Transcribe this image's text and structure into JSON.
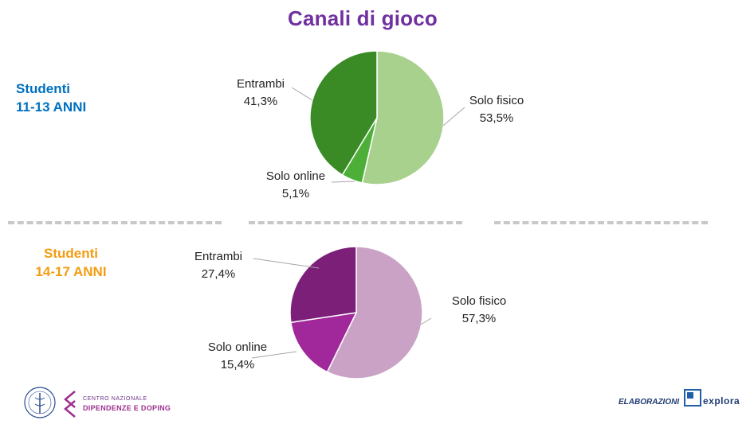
{
  "title": "Canali di gioco",
  "groups": [
    {
      "label_line1": "Studenti",
      "label_line2": "11-13 ANNI",
      "color": "#0070c0"
    },
    {
      "label_line1": "Studenti",
      "label_line2": "14-17 ANNI",
      "color": "#f39c12"
    }
  ],
  "chart_data": [
    {
      "type": "pie",
      "title": "",
      "categories": [
        "Solo fisico",
        "Solo online",
        "Entrambi"
      ],
      "values": [
        53.5,
        5.1,
        41.3
      ],
      "value_labels": [
        "53,5%",
        "5,1%",
        "41,3%"
      ],
      "colors": [
        "#a9d18e",
        "#4daf38",
        "#3a8a26"
      ]
    },
    {
      "type": "pie",
      "title": "",
      "categories": [
        "Solo fisico",
        "Solo online",
        "Entrambi"
      ],
      "values": [
        57.3,
        15.4,
        27.4
      ],
      "value_labels": [
        "57,3%",
        "15,4%",
        "27,4%"
      ],
      "colors": [
        "#c9a2c5",
        "#a0289a",
        "#7b1f79"
      ]
    }
  ],
  "footer": {
    "logo_small": "CENTRO NAZIONALE",
    "logo_main": "DIPENDENZE E DOPING",
    "elaborazioni": "ELABORAZIONI",
    "explora": "explora"
  },
  "colors": {
    "title": "#7030a0",
    "divider": "#c8c8c8"
  }
}
